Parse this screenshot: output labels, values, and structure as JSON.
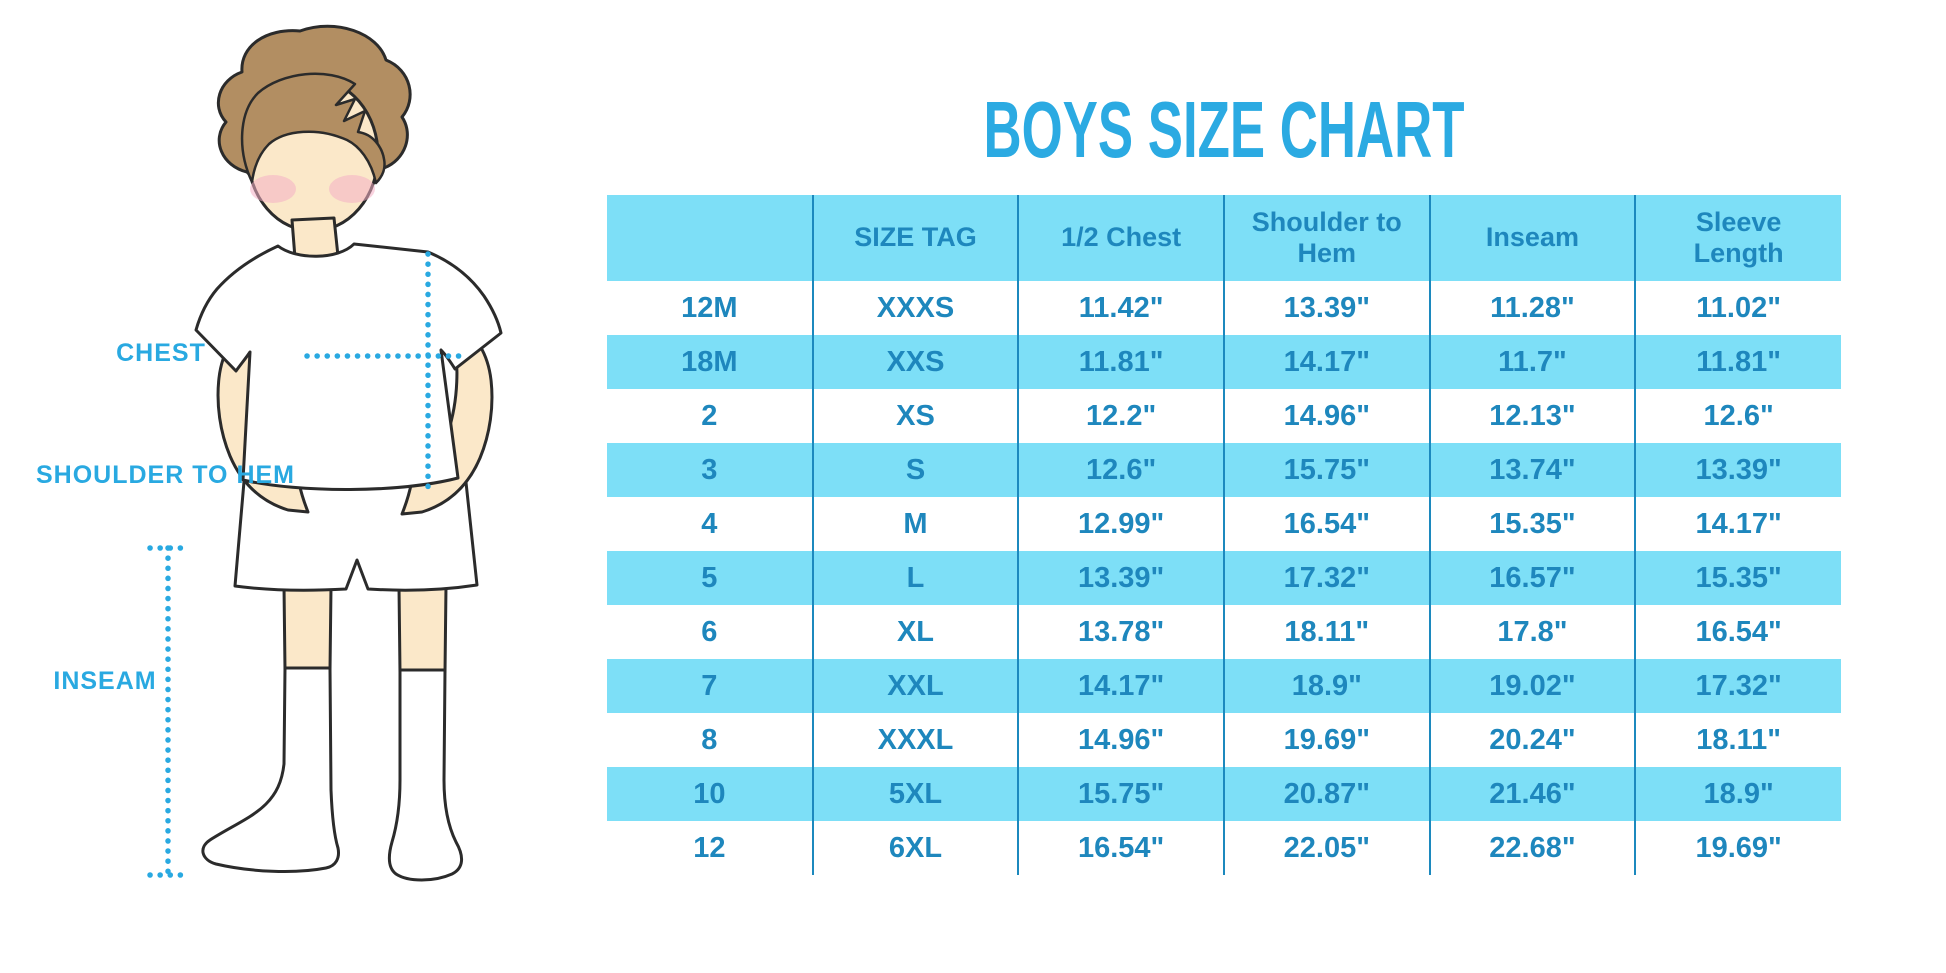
{
  "title": "BOYS SIZE CHART",
  "figure": {
    "illustration": "boy-mannequin-in-tshirt-shorts-and-socks",
    "labels": {
      "chest": "CHEST",
      "shoulder_to_hem": "SHOULDER TO HEM",
      "inseam": "INSEAM"
    }
  },
  "colors": {
    "accent": "#29A9E1",
    "title": "#2BAAE2",
    "table_text": "#1E87BD",
    "row_alt": "#7DDFF7",
    "divider": "#1C89BE",
    "skin": "#FBE8C9",
    "hair": "#B28E62",
    "blush": "#F4AFC4",
    "outline": "#2B2B2B"
  },
  "chart_data": {
    "type": "table",
    "title": "BOYS SIZE CHART",
    "columns": [
      "",
      "SIZE TAG",
      "1/2 Chest",
      "Shoulder to Hem",
      "Inseam",
      "Sleeve Length"
    ],
    "rows": [
      [
        "12M",
        "XXXS",
        "11.42\"",
        "13.39\"",
        "11.28\"",
        "11.02\""
      ],
      [
        "18M",
        "XXS",
        "11.81\"",
        "14.17\"",
        "11.7\"",
        "11.81\""
      ],
      [
        "2",
        "XS",
        "12.2\"",
        "14.96\"",
        "12.13\"",
        "12.6\""
      ],
      [
        "3",
        "S",
        "12.6\"",
        "15.75\"",
        "13.74\"",
        "13.39\""
      ],
      [
        "4",
        "M",
        "12.99\"",
        "16.54\"",
        "15.35\"",
        "14.17\""
      ],
      [
        "5",
        "L",
        "13.39\"",
        "17.32\"",
        "16.57\"",
        "15.35\""
      ],
      [
        "6",
        "XL",
        "13.78\"",
        "18.11\"",
        "17.8\"",
        "16.54\""
      ],
      [
        "7",
        "XXL",
        "14.17\"",
        "18.9\"",
        "19.02\"",
        "17.32\""
      ],
      [
        "8",
        "XXXL",
        "14.96\"",
        "19.69\"",
        "20.24\"",
        "18.11\""
      ],
      [
        "10",
        "5XL",
        "15.75\"",
        "20.87\"",
        "21.46\"",
        "18.9\""
      ],
      [
        "12",
        "6XL",
        "16.54\"",
        "22.05\"",
        "22.68\"",
        "19.69\""
      ]
    ],
    "measurement_labels": [
      "CHEST",
      "SHOULDER TO HEM",
      "INSEAM"
    ],
    "row_striping": "white / light-blue alternating, header light-blue",
    "legend_position": "none",
    "grid": "vertical column dividers only"
  }
}
